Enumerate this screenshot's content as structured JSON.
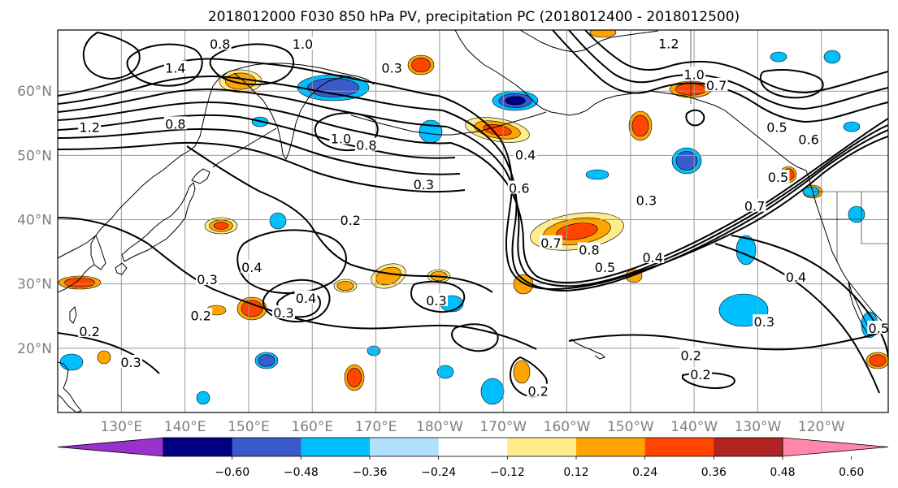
{
  "title": "2018012000 F030 850 hPa PV, precipitation PC (2018012400 - 2018012500)",
  "x_ticks": [
    {
      "lon": 130,
      "label": "130°E"
    },
    {
      "lon": 140,
      "label": "140°E"
    },
    {
      "lon": 150,
      "label": "150°E"
    },
    {
      "lon": 160,
      "label": "160°E"
    },
    {
      "lon": 170,
      "label": "170°E"
    },
    {
      "lon": 180,
      "label": "180°W"
    },
    {
      "lon": 190,
      "label": "170°W"
    },
    {
      "lon": 200,
      "label": "160°W"
    },
    {
      "lon": 210,
      "label": "150°W"
    },
    {
      "lon": 220,
      "label": "140°W"
    },
    {
      "lon": 230,
      "label": "130°W"
    },
    {
      "lon": 240,
      "label": "120°W"
    }
  ],
  "y_ticks": [
    {
      "lat": 20,
      "label": "20°N"
    },
    {
      "lat": 30,
      "label": "30°N"
    },
    {
      "lat": 40,
      "label": "40°N"
    },
    {
      "lat": 50,
      "label": "50°N"
    },
    {
      "lat": 60,
      "label": "60°N"
    }
  ],
  "map_extent": {
    "lon_min": 120,
    "lon_max": 250.5,
    "lat_min": 10,
    "lat_max": 69.5
  },
  "colorbar": {
    "bounds": [
      "−0.60",
      "−0.48",
      "−0.36",
      "−0.24",
      "−0.12",
      "0.12",
      "0.24",
      "0.36",
      "0.48",
      "0.60"
    ],
    "colors": [
      "#9932cc",
      "#000080",
      "#3a5bcc",
      "#00bfff",
      "#b0e2ff",
      "#ffffff",
      "#ffec8b",
      "#ffa500",
      "#ff4500",
      "#b22222",
      "#ff88aa"
    ],
    "extend": "both"
  },
  "contour_labels": [
    {
      "text": "0.8",
      "lon": 145.5,
      "lat": 67.2
    },
    {
      "text": "1.0",
      "lon": 158.5,
      "lat": 67.2
    },
    {
      "text": "1.4",
      "lon": 138.5,
      "lat": 63.5
    },
    {
      "text": "1.2",
      "lon": 125,
      "lat": 54.3
    },
    {
      "text": "0.8",
      "lon": 138.5,
      "lat": 54.8
    },
    {
      "text": "0.8",
      "lon": 168.5,
      "lat": 51.5
    },
    {
      "text": "1.0",
      "lon": 164.5,
      "lat": 52.5
    },
    {
      "text": "0.3",
      "lon": 172.5,
      "lat": 63.5
    },
    {
      "text": "0.3",
      "lon": 177.5,
      "lat": 45.4
    },
    {
      "text": "0.4",
      "lon": 193.5,
      "lat": 50
    },
    {
      "text": "0.6",
      "lon": 192.5,
      "lat": 44.8
    },
    {
      "text": "0.3",
      "lon": 212.5,
      "lat": 42.9
    },
    {
      "text": "1.0",
      "lon": 220,
      "lat": 62.5
    },
    {
      "text": "1.2",
      "lon": 216,
      "lat": 67.3
    },
    {
      "text": "0.7",
      "lon": 223.5,
      "lat": 60.8
    },
    {
      "text": "0.5",
      "lon": 233,
      "lat": 54.3
    },
    {
      "text": "0.6",
      "lon": 238,
      "lat": 52.4
    },
    {
      "text": "0.2",
      "lon": 166,
      "lat": 39.8
    },
    {
      "text": "0.4",
      "lon": 150.5,
      "lat": 32.5
    },
    {
      "text": "0.3",
      "lon": 143.5,
      "lat": 30.6
    },
    {
      "text": "0.2",
      "lon": 142.5,
      "lat": 25
    },
    {
      "text": "0.2",
      "lon": 125,
      "lat": 22.5
    },
    {
      "text": "0.3",
      "lon": 131.5,
      "lat": 17.7
    },
    {
      "text": "0.3",
      "lon": 155.5,
      "lat": 25.4
    },
    {
      "text": "0.4",
      "lon": 159,
      "lat": 27.7
    },
    {
      "text": "0.3",
      "lon": 179.5,
      "lat": 27.3
    },
    {
      "text": "0.7",
      "lon": 197.5,
      "lat": 36.3
    },
    {
      "text": "0.8",
      "lon": 203.5,
      "lat": 35.2
    },
    {
      "text": "0.5",
      "lon": 206,
      "lat": 32.5
    },
    {
      "text": "0.4",
      "lon": 213.5,
      "lat": 34
    },
    {
      "text": "0.3",
      "lon": 231,
      "lat": 24
    },
    {
      "text": "0.2",
      "lon": 219.5,
      "lat": 18.8
    },
    {
      "text": "0.2",
      "lon": 221,
      "lat": 15.8
    },
    {
      "text": "0.2",
      "lon": 195.5,
      "lat": 13.2
    },
    {
      "text": "0.5",
      "lon": 233.2,
      "lat": 46.5
    },
    {
      "text": "0.7",
      "lon": 229.5,
      "lat": 42
    },
    {
      "text": "0.4",
      "lon": 236,
      "lat": 31
    },
    {
      "text": "0.5",
      "lon": 249,
      "lat": 23
    }
  ]
}
